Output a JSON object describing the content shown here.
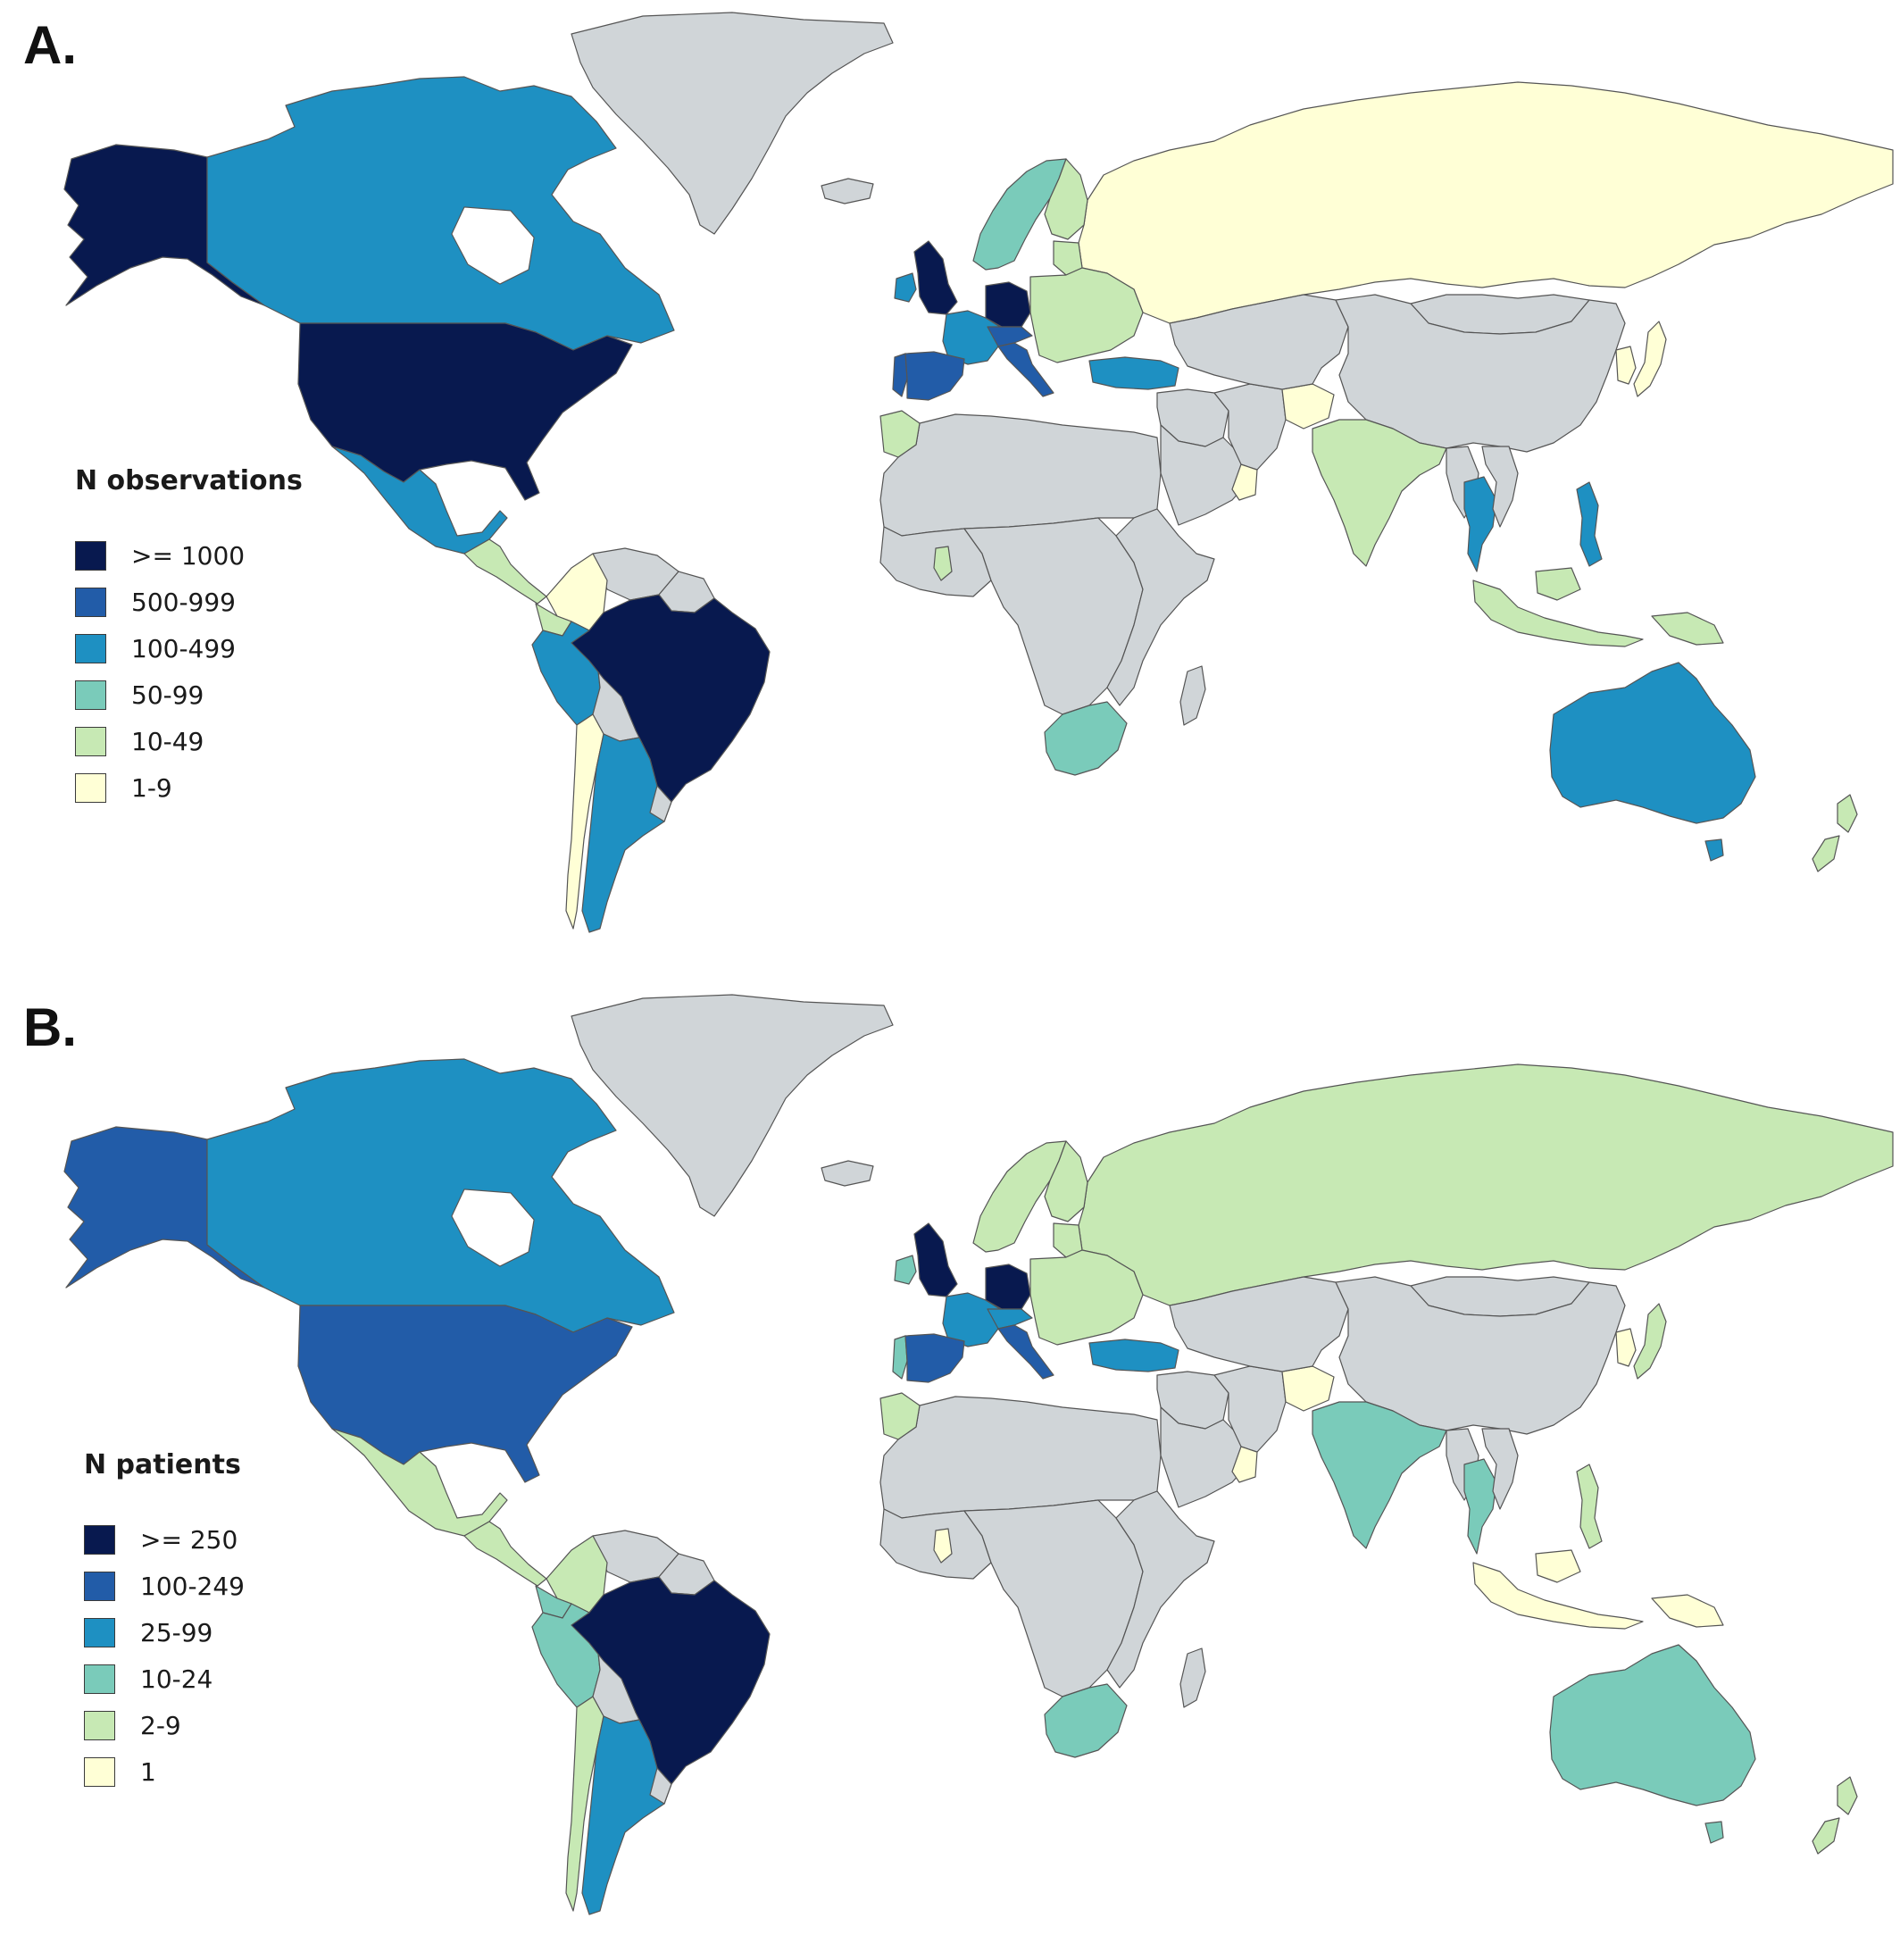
{
  "colors": {
    "no_data": "#d0d5d8",
    "ocean": "#ffffff",
    "border": "#555555",
    "scale": [
      "#08194f",
      "#225ca8",
      "#1e90c2",
      "#7acbba",
      "#c7e9b4",
      "#ffffd6"
    ]
  },
  "panels": [
    {
      "label": "A.",
      "legend": {
        "title": "N observations",
        "classes": [
          ">= 1000",
          "500-999",
          "100-499",
          "50-99",
          "10-49",
          "1-9"
        ]
      },
      "country_class": {
        "alaska": 0,
        "canada": 2,
        "usa": 0,
        "greenland": null,
        "mexico": 2,
        "central-america": 4,
        "colombia": 5,
        "venezuela": null,
        "brazil": 0,
        "peru": 2,
        "ecuador": 4,
        "bolivia": null,
        "chile": 5,
        "argentina": 2,
        "uruguay": null,
        "guianas": null,
        "iceland": null,
        "uk": 0,
        "ireland": 2,
        "portugal": 1,
        "spain": 1,
        "france": 2,
        "germany": 0,
        "italy": 1,
        "alps": 1,
        "scandinavia": 3,
        "finland": 4,
        "baltics": 4,
        "eastern-europe": 4,
        "russia": 5,
        "turkey": 2,
        "morocco": 4,
        "north-africa": null,
        "west-africa": null,
        "ghana": 4,
        "central-africa": null,
        "east-africa": null,
        "south-africa": 3,
        "madagascar": null,
        "middle-east": null,
        "arabia": null,
        "oman": 5,
        "iran": null,
        "afghanistan": 5,
        "central-asia": null,
        "india": 4,
        "china": null,
        "mongolia": null,
        "japan": 5,
        "korea": 5,
        "thailand": 2,
        "myanmar": null,
        "vietnam": null,
        "philippines": 2,
        "indonesia": 4,
        "papua": 4,
        "australia": 2,
        "new-zealand": 4
      }
    },
    {
      "label": "B.",
      "legend": {
        "title": "N patients",
        "classes": [
          ">= 250",
          "100-249",
          "25-99",
          "10-24",
          "2-9",
          "1"
        ]
      },
      "country_class": {
        "alaska": 1,
        "canada": 2,
        "usa": 1,
        "greenland": null,
        "mexico": 4,
        "central-america": 4,
        "colombia": 4,
        "venezuela": null,
        "brazil": 0,
        "peru": 3,
        "ecuador": 3,
        "bolivia": null,
        "chile": 4,
        "argentina": 2,
        "uruguay": null,
        "guianas": null,
        "iceland": null,
        "uk": 0,
        "ireland": 3,
        "portugal": 3,
        "spain": 1,
        "france": 2,
        "germany": 0,
        "italy": 1,
        "alps": 2,
        "scandinavia": 4,
        "finland": 4,
        "baltics": 4,
        "eastern-europe": 4,
        "russia": 4,
        "turkey": 2,
        "morocco": 4,
        "north-africa": null,
        "west-africa": null,
        "ghana": 5,
        "central-africa": null,
        "east-africa": null,
        "south-africa": 3,
        "madagascar": null,
        "middle-east": null,
        "arabia": null,
        "oman": 5,
        "iran": null,
        "afghanistan": 5,
        "central-asia": null,
        "india": 3,
        "china": null,
        "mongolia": null,
        "japan": 4,
        "korea": 5,
        "thailand": 3,
        "myanmar": null,
        "vietnam": null,
        "philippines": 4,
        "indonesia": 5,
        "papua": 5,
        "australia": 3,
        "new-zealand": 4
      }
    }
  ]
}
